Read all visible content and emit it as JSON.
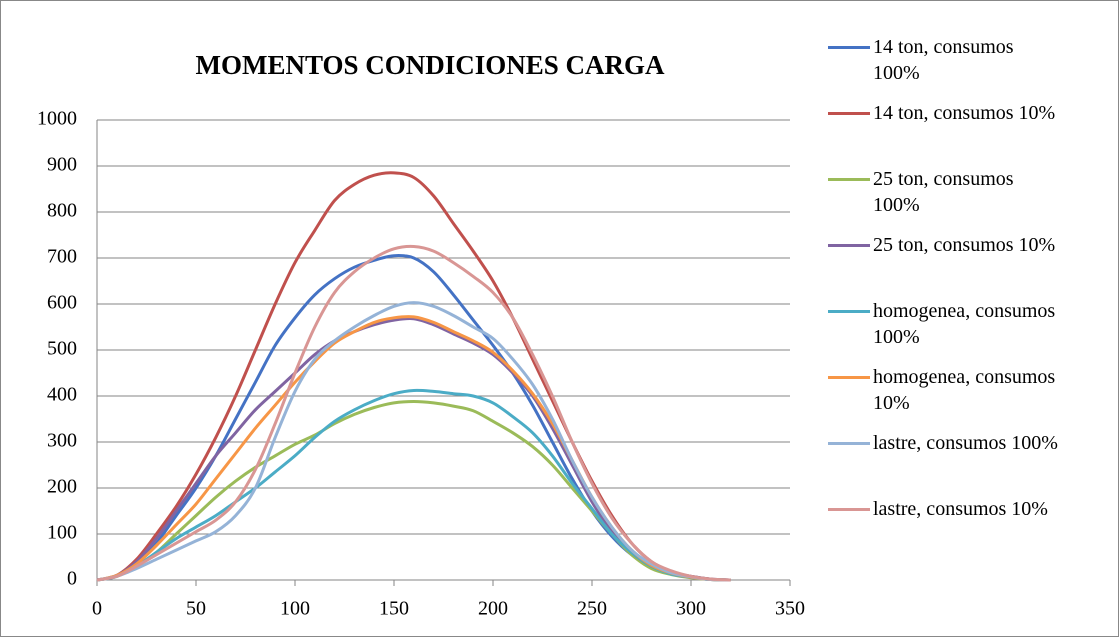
{
  "chart_data": {
    "type": "line",
    "title": "MOMENTOS CONDICIONES CARGA",
    "x": [
      0,
      10,
      20,
      30,
      40,
      50,
      60,
      70,
      80,
      90,
      100,
      110,
      120,
      130,
      140,
      150,
      160,
      170,
      180,
      190,
      200,
      210,
      220,
      230,
      240,
      250,
      260,
      270,
      280,
      290,
      300,
      310,
      320
    ],
    "series": [
      {
        "name": "14 ton, consumos 100%",
        "color": "#4472c4",
        "values": [
          0,
          8,
          35,
          80,
          140,
          200,
          270,
          350,
          430,
          510,
          570,
          620,
          655,
          680,
          695,
          705,
          700,
          670,
          620,
          565,
          510,
          450,
          380,
          300,
          220,
          150,
          95,
          55,
          30,
          15,
          8,
          2,
          0
        ]
      },
      {
        "name": "14 ton, consumos 10%",
        "color": "#c0504d",
        "values": [
          0,
          10,
          45,
          100,
          160,
          230,
          310,
          400,
          500,
          600,
          690,
          760,
          825,
          860,
          880,
          885,
          875,
          835,
          775,
          715,
          650,
          570,
          480,
          390,
          300,
          215,
          140,
          80,
          40,
          18,
          8,
          2,
          0
        ]
      },
      {
        "name": "25 ton, consumos 100%",
        "color": "#9bbb59",
        "values": [
          0,
          8,
          30,
          60,
          100,
          140,
          180,
          215,
          245,
          270,
          295,
          315,
          340,
          360,
          375,
          385,
          388,
          385,
          378,
          368,
          345,
          320,
          290,
          250,
          200,
          150,
          100,
          55,
          25,
          12,
          5,
          1,
          0
        ]
      },
      {
        "name": "25 ton, consumos 10%",
        "color": "#8064a2",
        "values": [
          0,
          10,
          40,
          90,
          150,
          210,
          270,
          320,
          370,
          410,
          450,
          490,
          520,
          540,
          555,
          565,
          568,
          555,
          535,
          515,
          490,
          450,
          400,
          330,
          250,
          170,
          105,
          60,
          30,
          14,
          6,
          1,
          0
        ]
      },
      {
        "name": "homogenea, consumos 100%",
        "color": "#4bacc6",
        "values": [
          0,
          8,
          30,
          60,
          90,
          115,
          140,
          170,
          200,
          235,
          270,
          310,
          345,
          370,
          390,
          405,
          412,
          410,
          405,
          400,
          385,
          355,
          320,
          270,
          210,
          155,
          100,
          60,
          30,
          13,
          6,
          1,
          0
        ]
      },
      {
        "name": "homogenea, consumos 10%",
        "color": "#f79646",
        "values": [
          0,
          10,
          35,
          75,
          120,
          165,
          220,
          275,
          330,
          380,
          430,
          475,
          515,
          540,
          560,
          570,
          572,
          560,
          540,
          520,
          495,
          455,
          405,
          340,
          260,
          180,
          115,
          65,
          32,
          15,
          6,
          1,
          0
        ]
      },
      {
        "name": "lastre, consumos 100%",
        "color": "#95b3d7",
        "values": [
          0,
          8,
          25,
          45,
          65,
          85,
          105,
          140,
          200,
          310,
          410,
          480,
          520,
          550,
          575,
          595,
          603,
          595,
          575,
          550,
          525,
          480,
          425,
          350,
          260,
          180,
          115,
          65,
          35,
          16,
          7,
          1,
          0
        ]
      },
      {
        "name": "lastre, consumos 10%",
        "color": "#d99694",
        "values": [
          0,
          8,
          30,
          55,
          80,
          105,
          130,
          170,
          240,
          340,
          450,
          550,
          625,
          670,
          700,
          720,
          725,
          715,
          690,
          660,
          625,
          570,
          490,
          400,
          300,
          210,
          135,
          80,
          40,
          20,
          8,
          2,
          0
        ]
      }
    ],
    "xlim": [
      0,
      350
    ],
    "xticks": [
      0,
      50,
      100,
      150,
      200,
      250,
      300,
      350
    ],
    "ylim": [
      0,
      1000
    ],
    "yticks": [
      0,
      100,
      200,
      300,
      400,
      500,
      600,
      700,
      800,
      900,
      1000
    ],
    "grid": true,
    "legend": "right"
  }
}
